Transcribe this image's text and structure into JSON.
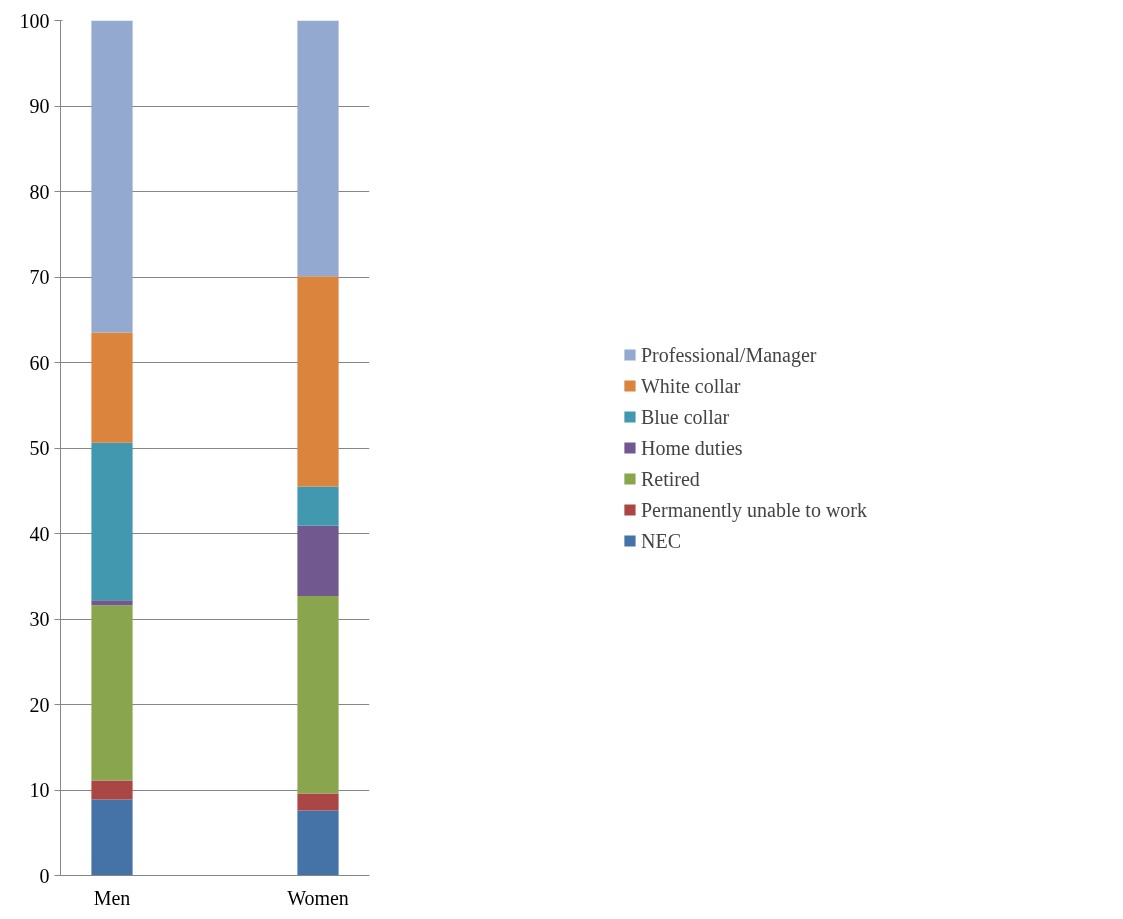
{
  "chart_data": {
    "type": "bar",
    "stacked": true,
    "categories": [
      "Men",
      "Women"
    ],
    "series": [
      {
        "name": "NEC",
        "color": "#4572a7",
        "values": [
          8.9,
          7.6
        ]
      },
      {
        "name": "Permanently unable to work",
        "color": "#aa4643",
        "values": [
          2.2,
          2.0
        ]
      },
      {
        "name": "Retired",
        "color": "#89a54e",
        "values": [
          20.5,
          23.1
        ]
      },
      {
        "name": "Home duties",
        "color": "#71588f",
        "values": [
          0.6,
          8.2
        ]
      },
      {
        "name": "Blue collar",
        "color": "#4198af",
        "values": [
          18.4,
          4.6
        ]
      },
      {
        "name": "White collar",
        "color": "#db843d",
        "values": [
          12.9,
          24.6
        ]
      },
      {
        "name": "Professional/Manager",
        "color": "#93a9cf",
        "values": [
          36.5,
          29.9
        ]
      }
    ],
    "ylim": [
      0,
      100
    ],
    "yticks": [
      0,
      10,
      20,
      30,
      40,
      50,
      60,
      70,
      80,
      90,
      100
    ],
    "grid": "y",
    "legend": "right"
  }
}
